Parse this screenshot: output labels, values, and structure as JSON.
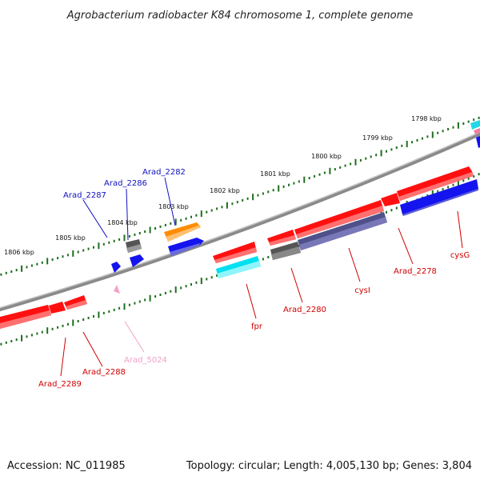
{
  "title": "Agrobacterium radiobacter K84 chromosome 1, complete genome",
  "accession": "Accession: NC_011985",
  "summary": "Topology: circular; Length: 4,005,130 bp; Genes: 3,804",
  "scale": {
    "unit": "kbp",
    "labels": [
      "1798 kbp",
      "1799 kbp",
      "1800 kbp",
      "1801 kbp",
      "1802 kbp",
      "1803 kbp",
      "1804 kbp",
      "1805 kbp",
      "1806 kbp"
    ]
  },
  "colors": {
    "backbone": "#808080",
    "tick": "#1e6e1e",
    "forward_label": "#1010c0",
    "reverse_label": "#d00000",
    "pseudo_label": "#f0a0c8"
  },
  "genes": [
    {
      "name": "Arad_2282",
      "strand": "forward",
      "color": "#ff8c00"
    },
    {
      "name": "Arad_2286",
      "strand": "forward",
      "color": "#666666"
    },
    {
      "name": "Arad_2287",
      "strand": "forward",
      "color": "#1010ff"
    },
    {
      "name": "fpr",
      "strand": "reverse",
      "color": "#ff1010"
    },
    {
      "name": "Arad_2280",
      "strand": "reverse",
      "color": "#ff1010"
    },
    {
      "name": "cysI",
      "strand": "reverse",
      "color": "#ff1010"
    },
    {
      "name": "Arad_2278",
      "strand": "reverse",
      "color": "#ff1010"
    },
    {
      "name": "cysG",
      "strand": "reverse",
      "color": "#ff1010"
    },
    {
      "name": "Arad_5024",
      "strand": "reverse",
      "color": "#f4a0c8"
    },
    {
      "name": "Arad_2288",
      "strand": "reverse",
      "color": "#ff1010"
    },
    {
      "name": "Arad_2289",
      "strand": "reverse",
      "color": "#ff1010"
    }
  ]
}
